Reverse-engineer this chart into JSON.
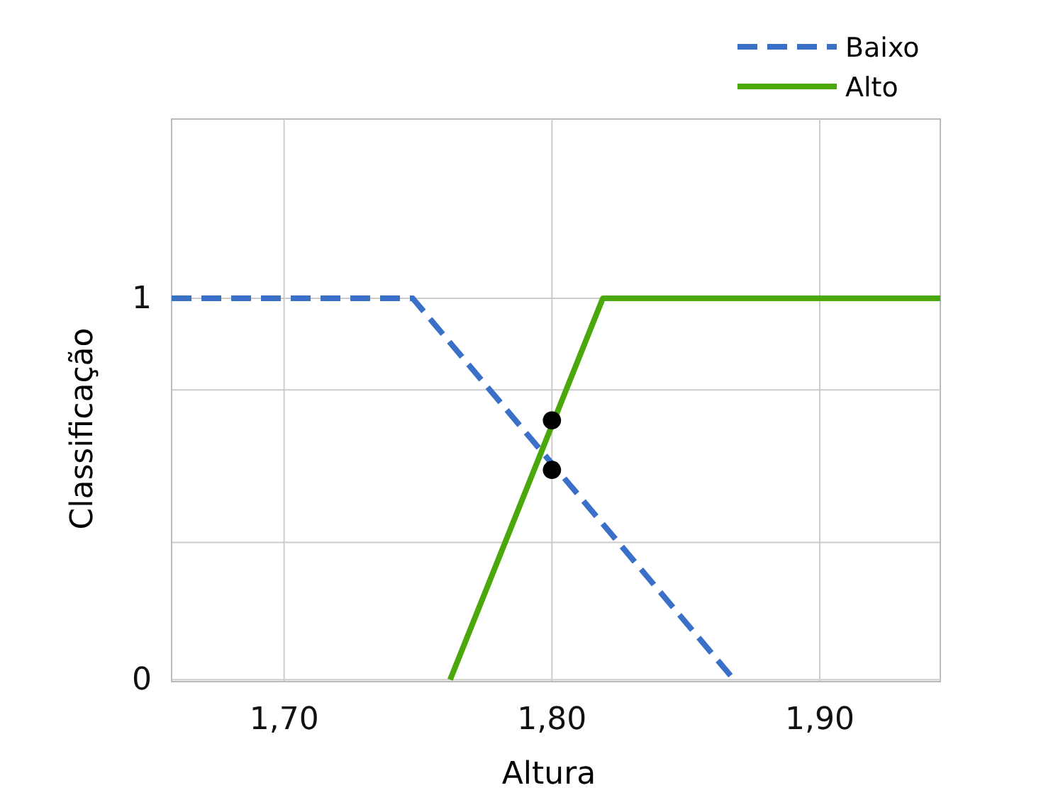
{
  "chart_data": {
    "type": "line",
    "xlabel": "Altura",
    "ylabel": "Classificação",
    "xlim": [
      1.658,
      1.945
    ],
    "ylim": [
      -0.005,
      1.47
    ],
    "xticks": [
      {
        "value": 1.7,
        "label": "1,70"
      },
      {
        "value": 1.8,
        "label": "1,80"
      },
      {
        "value": 1.9,
        "label": "1,90"
      }
    ],
    "yticks": [
      0,
      {
        "value": 0.36,
        "label": null
      },
      {
        "value": 0.76,
        "label": null
      },
      1
    ],
    "grid": true,
    "legend": "top right",
    "series": [
      {
        "name": "Baixo",
        "color": "#3a70c8",
        "line_style": "dashed",
        "x": [
          1.658,
          1.748,
          1.868
        ],
        "values": [
          1,
          1,
          0
        ]
      },
      {
        "name": "Alto",
        "color": "#4aa80a",
        "line_style": "solid",
        "x": [
          1.762,
          1.819,
          1.945
        ],
        "values": [
          0,
          1,
          1
        ]
      },
      {
        "type": "scatter",
        "color": "#000000",
        "marker": "circle",
        "x": [
          1.8,
          1.8
        ],
        "values": [
          0.68,
          0.55
        ]
      }
    ]
  }
}
